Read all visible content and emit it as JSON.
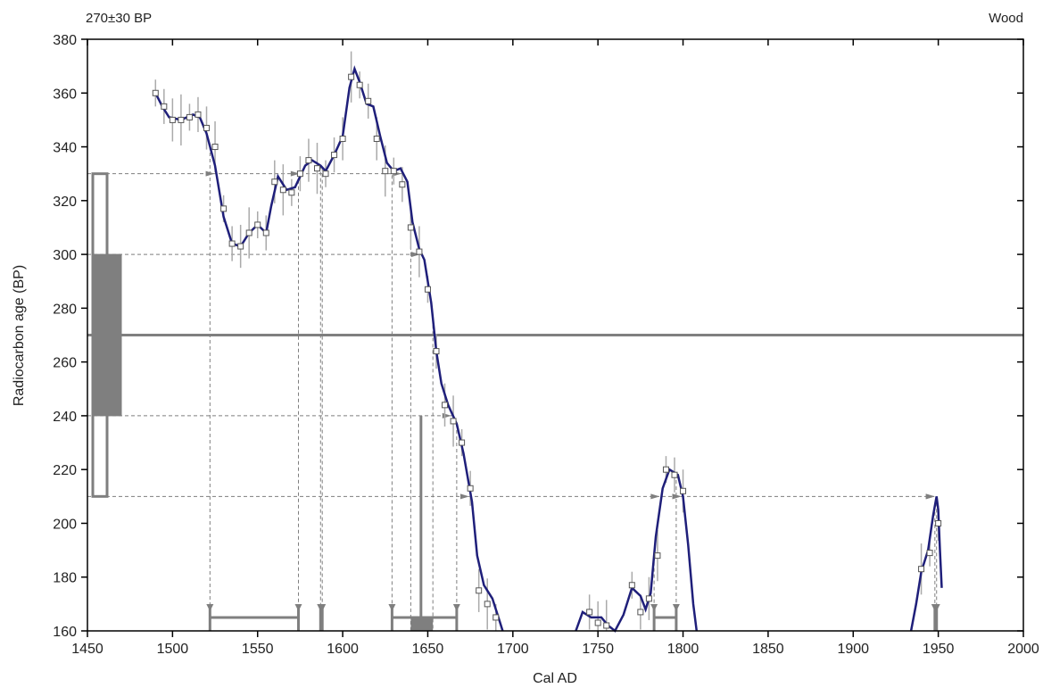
{
  "header": {
    "left": "270±30 BP",
    "right": "Wood"
  },
  "chart_data": {
    "type": "line",
    "xlabel": "Cal AD",
    "ylabel": "Radiocarbon age (BP)",
    "xlim": [
      1450,
      2000
    ],
    "ylim": [
      160,
      380
    ],
    "xticks": [
      1450,
      1500,
      1550,
      1600,
      1650,
      1700,
      1750,
      1800,
      1850,
      1900,
      1950,
      2000
    ],
    "yticks": [
      160,
      180,
      200,
      220,
      240,
      260,
      280,
      300,
      320,
      340,
      360,
      380
    ],
    "measurement": {
      "age": 270,
      "error": 30,
      "one_sigma": [
        240,
        300
      ],
      "two_sigma": [
        210,
        330
      ]
    },
    "series": [
      {
        "role": "calibration-curve",
        "segments": [
          [
            [
              1490,
              360
            ],
            [
              1494,
              355
            ],
            [
              1498,
              351
            ],
            [
              1505,
              350
            ],
            [
              1512,
              352
            ],
            [
              1516,
              351
            ],
            [
              1520,
              345
            ],
            [
              1525,
              333
            ],
            [
              1530,
              314
            ],
            [
              1535,
              304
            ],
            [
              1540,
              303
            ],
            [
              1545,
              308
            ],
            [
              1550,
              311
            ],
            [
              1555,
              308
            ],
            [
              1558,
              318
            ],
            [
              1562,
              329
            ],
            [
              1567,
              324
            ],
            [
              1572,
              325
            ],
            [
              1578,
              333
            ],
            [
              1582,
              335
            ],
            [
              1587,
              333
            ],
            [
              1590,
              331
            ],
            [
              1595,
              337
            ],
            [
              1600,
              344
            ],
            [
              1604,
              362
            ],
            [
              1607,
              369
            ],
            [
              1610,
              364
            ],
            [
              1614,
              356
            ],
            [
              1618,
              355
            ],
            [
              1622,
              344
            ],
            [
              1626,
              334
            ],
            [
              1630,
              331
            ],
            [
              1634,
              332
            ],
            [
              1638,
              327
            ],
            [
              1641,
              312
            ],
            [
              1645,
              302
            ],
            [
              1648,
              298
            ],
            [
              1652,
              282
            ],
            [
              1655,
              264
            ],
            [
              1658,
              252
            ],
            [
              1662,
              244
            ],
            [
              1667,
              237
            ],
            [
              1671,
              226
            ],
            [
              1676,
              208
            ],
            [
              1679,
              188
            ],
            [
              1683,
              177
            ],
            [
              1688,
              172
            ],
            [
              1692,
              164
            ],
            [
              1694,
              160
            ]
          ],
          [
            [
              1737,
              160
            ],
            [
              1741,
              167
            ],
            [
              1746,
              165
            ],
            [
              1752,
              165
            ],
            [
              1756,
              162
            ],
            [
              1760,
              158
            ],
            [
              1765,
              166
            ],
            [
              1770,
              176
            ],
            [
              1775,
              173
            ],
            [
              1778,
              168
            ],
            [
              1781,
              174
            ],
            [
              1784,
              195
            ],
            [
              1788,
              213
            ],
            [
              1792,
              220
            ],
            [
              1797,
              218
            ],
            [
              1800,
              210
            ],
            [
              1803,
              192
            ],
            [
              1806,
              170
            ],
            [
              1808,
              160
            ]
          ],
          [
            [
              1934,
              158
            ],
            [
              1937,
              170
            ],
            [
              1940,
              182
            ],
            [
              1944,
              190
            ],
            [
              1947,
              203
            ],
            [
              1949,
              210
            ],
            [
              1950,
              205
            ],
            [
              1951,
              190
            ],
            [
              1952,
              176
            ]
          ]
        ]
      }
    ],
    "data_points": [
      [
        1490,
        360
      ],
      [
        1495,
        355
      ],
      [
        1500,
        350
      ],
      [
        1505,
        350
      ],
      [
        1510,
        351
      ],
      [
        1515,
        352
      ],
      [
        1520,
        347
      ],
      [
        1525,
        340
      ],
      [
        1530,
        317
      ],
      [
        1535,
        304
      ],
      [
        1540,
        303
      ],
      [
        1545,
        308
      ],
      [
        1550,
        311
      ],
      [
        1555,
        308
      ],
      [
        1560,
        327
      ],
      [
        1565,
        324
      ],
      [
        1570,
        323
      ],
      [
        1575,
        330
      ],
      [
        1580,
        335
      ],
      [
        1585,
        332
      ],
      [
        1590,
        330
      ],
      [
        1595,
        337
      ],
      [
        1600,
        343
      ],
      [
        1605,
        366
      ],
      [
        1610,
        363
      ],
      [
        1615,
        357
      ],
      [
        1620,
        343
      ],
      [
        1625,
        331
      ],
      [
        1630,
        331
      ],
      [
        1635,
        326
      ],
      [
        1640,
        310
      ],
      [
        1645,
        301
      ],
      [
        1650,
        287
      ],
      [
        1655,
        264
      ],
      [
        1660,
        244
      ],
      [
        1665,
        238
      ],
      [
        1670,
        230
      ],
      [
        1675,
        213
      ],
      [
        1680,
        175
      ],
      [
        1685,
        170
      ],
      [
        1690,
        165
      ],
      [
        1745,
        167
      ],
      [
        1750,
        163
      ],
      [
        1755,
        162
      ],
      [
        1770,
        177
      ],
      [
        1775,
        167
      ],
      [
        1780,
        172
      ],
      [
        1785,
        188
      ],
      [
        1790,
        220
      ],
      [
        1795,
        218
      ],
      [
        1800,
        212
      ],
      [
        1940,
        183
      ],
      [
        1945,
        189
      ],
      [
        1950,
        200
      ]
    ],
    "ranges_2sigma": [
      [
        1522,
        1574
      ],
      [
        1587,
        1588
      ],
      [
        1629,
        1667
      ],
      [
        1783,
        1796
      ],
      [
        1948,
        1949
      ]
    ],
    "ranges_1sigma": [
      [
        1640,
        1653
      ]
    ],
    "median": 1646
  }
}
